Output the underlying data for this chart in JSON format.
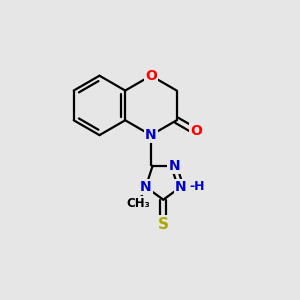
{
  "background_color": "#e6e6e6",
  "bond_color": "#000000",
  "atom_colors": {
    "O": "#ff0000",
    "N": "#0000cc",
    "S": "#aaaa00",
    "C": "#000000"
  },
  "font_size": 10,
  "fig_size": [
    3.0,
    3.0
  ],
  "dpi": 100,
  "lw": 1.6,
  "xlim": [
    0,
    10
  ],
  "ylim": [
    0,
    10
  ]
}
